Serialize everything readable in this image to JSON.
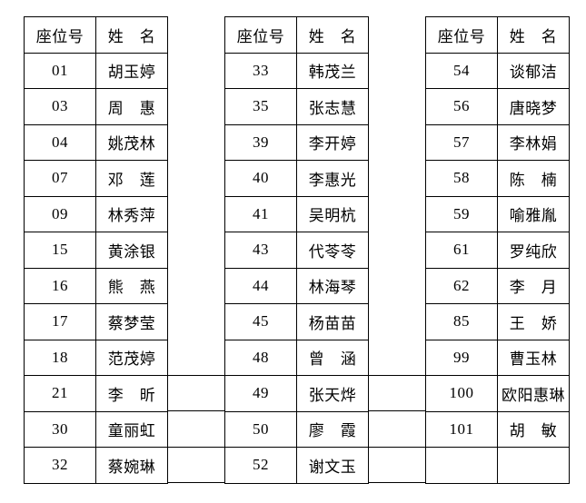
{
  "page": {
    "background": "#ffffff",
    "border_color": "#000000",
    "text_color": "#000000"
  },
  "columns": {
    "seat_header": "座位号",
    "name_header": "姓　名"
  },
  "tables": [
    {
      "rows": [
        {
          "seat": "01",
          "name": "胡玉婷"
        },
        {
          "seat": "03",
          "name": "周　惠"
        },
        {
          "seat": "04",
          "name": "姚茂林"
        },
        {
          "seat": "07",
          "name": "邓　莲"
        },
        {
          "seat": "09",
          "name": "林秀萍"
        },
        {
          "seat": "15",
          "name": "黄涂银"
        },
        {
          "seat": "16",
          "name": "熊　燕"
        },
        {
          "seat": "17",
          "name": "蔡梦莹"
        },
        {
          "seat": "18",
          "name": "范茂婷"
        },
        {
          "seat": "21",
          "name": "李　昕"
        },
        {
          "seat": "30",
          "name": "童丽虹"
        },
        {
          "seat": "32",
          "name": "蔡婉琳"
        }
      ]
    },
    {
      "rows": [
        {
          "seat": "33",
          "name": "韩茂兰"
        },
        {
          "seat": "35",
          "name": "张志慧"
        },
        {
          "seat": "39",
          "name": "李开婷"
        },
        {
          "seat": "40",
          "name": "李惠光"
        },
        {
          "seat": "41",
          "name": "吴明杭"
        },
        {
          "seat": "43",
          "name": "代苓苓"
        },
        {
          "seat": "44",
          "name": "林海琴"
        },
        {
          "seat": "45",
          "name": "杨苗苗"
        },
        {
          "seat": "48",
          "name": "曾　涵"
        },
        {
          "seat": "49",
          "name": "张天烨"
        },
        {
          "seat": "50",
          "name": "廖　霞"
        },
        {
          "seat": "52",
          "name": "谢文玉"
        }
      ]
    },
    {
      "rows": [
        {
          "seat": "54",
          "name": "谈郁洁"
        },
        {
          "seat": "56",
          "name": "唐晓梦"
        },
        {
          "seat": "57",
          "name": "李林娟"
        },
        {
          "seat": "58",
          "name": "陈　楠"
        },
        {
          "seat": "59",
          "name": "喻雅胤"
        },
        {
          "seat": "61",
          "name": "罗纯欣"
        },
        {
          "seat": "62",
          "name": "李　月"
        },
        {
          "seat": "85",
          "name": "王　娇"
        },
        {
          "seat": "99",
          "name": "曹玉林"
        },
        {
          "seat": "100",
          "name": "欧阳惠琳"
        },
        {
          "seat": "101",
          "name": "胡　敏"
        },
        {
          "seat": "",
          "name": ""
        }
      ]
    }
  ],
  "gap_bordered_rows": 3
}
